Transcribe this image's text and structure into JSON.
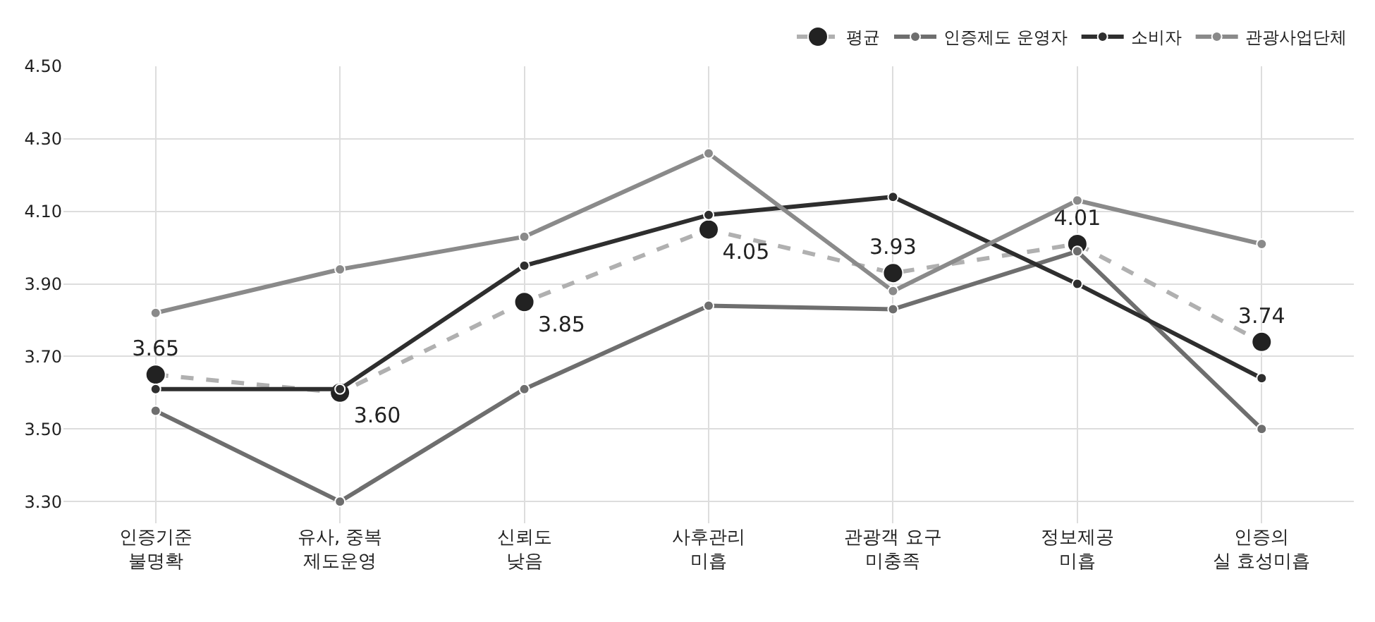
{
  "chart_data": {
    "type": "line",
    "categories": [
      "인증기준\n불명확",
      "유사, 중복\n제도운영",
      "신뢰도\n낮음",
      "사후관리\n미흡",
      "관광객 요구\n미충족",
      "정보제공\n미흡",
      "인증의\n실 효성미흡"
    ],
    "series": [
      {
        "name": "평균",
        "color": "#b0b0b0",
        "line_style": "dashed",
        "values": [
          3.65,
          3.6,
          3.85,
          4.05,
          3.93,
          4.01,
          3.74
        ],
        "value_labels": [
          "3.65",
          "3.60",
          "3.85",
          "4.05",
          "3.93",
          "4.01",
          "3.74"
        ]
      },
      {
        "name": "인증제도 운영자",
        "color": "#6e6e6e",
        "line_style": "solid",
        "values": [
          3.55,
          3.3,
          3.61,
          3.84,
          3.83,
          3.99,
          3.5
        ]
      },
      {
        "name": "소비자",
        "color": "#2e2e2e",
        "line_style": "solid",
        "values": [
          3.61,
          3.61,
          3.95,
          4.09,
          4.14,
          3.9,
          3.64
        ]
      },
      {
        "name": "관광사업단체",
        "color": "#8a8a8a",
        "line_style": "solid",
        "values": [
          3.82,
          3.94,
          4.03,
          4.26,
          3.88,
          4.13,
          4.01
        ]
      }
    ],
    "ylim": [
      3.24,
      4.5
    ],
    "yticks": [
      {
        "value": 3.3,
        "label": "3.30"
      },
      {
        "value": 3.5,
        "label": "3.50"
      },
      {
        "value": 3.7,
        "label": "3.70"
      },
      {
        "value": 3.9,
        "label": "3.90"
      },
      {
        "value": 4.1,
        "label": "4.10"
      },
      {
        "value": 4.3,
        "label": "4.30"
      },
      {
        "value": 4.5,
        "label": "4.50"
      }
    ],
    "grid": true,
    "legend": "top right",
    "marker": "circle"
  }
}
